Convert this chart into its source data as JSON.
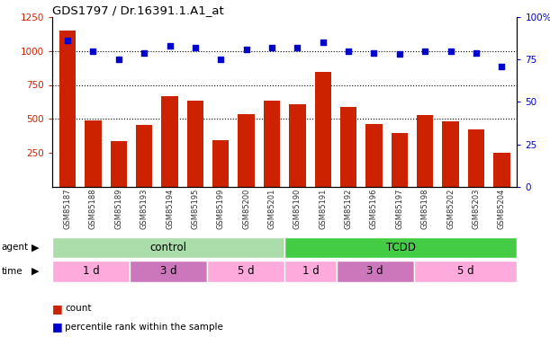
{
  "title": "GDS1797 / Dr.16391.1.A1_at",
  "samples": [
    "GSM85187",
    "GSM85188",
    "GSM85189",
    "GSM85193",
    "GSM85194",
    "GSM85195",
    "GSM85199",
    "GSM85200",
    "GSM85201",
    "GSM85190",
    "GSM85191",
    "GSM85192",
    "GSM85196",
    "GSM85197",
    "GSM85198",
    "GSM85202",
    "GSM85203",
    "GSM85204"
  ],
  "counts": [
    1150,
    490,
    340,
    455,
    670,
    635,
    345,
    535,
    635,
    605,
    845,
    585,
    460,
    400,
    530,
    480,
    425,
    250
  ],
  "percentiles": [
    86,
    80,
    75,
    79,
    83,
    82,
    75,
    81,
    82,
    82,
    85,
    80,
    79,
    78,
    80,
    80,
    79,
    71
  ],
  "ylim_left": [
    0,
    1250
  ],
  "ylim_right": [
    0,
    100
  ],
  "yticks_left": [
    250,
    500,
    750,
    1000,
    1250
  ],
  "yticks_right": [
    0,
    25,
    50,
    75,
    100
  ],
  "bar_color": "#cc2200",
  "dot_color": "#0000cc",
  "agent_groups": [
    {
      "label": "control",
      "start": 0,
      "end": 9,
      "color": "#aaddaa"
    },
    {
      "label": "TCDD",
      "start": 9,
      "end": 18,
      "color": "#44cc44"
    }
  ],
  "time_groups": [
    {
      "label": "1 d",
      "start": 0,
      "end": 3,
      "color": "#ffaadd"
    },
    {
      "label": "3 d",
      "start": 3,
      "end": 6,
      "color": "#cc77bb"
    },
    {
      "label": "5 d",
      "start": 6,
      "end": 9,
      "color": "#ffaadd"
    },
    {
      "label": "1 d",
      "start": 9,
      "end": 11,
      "color": "#ffaadd"
    },
    {
      "label": "3 d",
      "start": 11,
      "end": 14,
      "color": "#cc77bb"
    },
    {
      "label": "5 d",
      "start": 14,
      "end": 18,
      "color": "#ffaadd"
    }
  ],
  "legend_items": [
    {
      "label": "count",
      "color": "#cc2200"
    },
    {
      "label": "percentile rank within the sample",
      "color": "#0000cc"
    }
  ]
}
